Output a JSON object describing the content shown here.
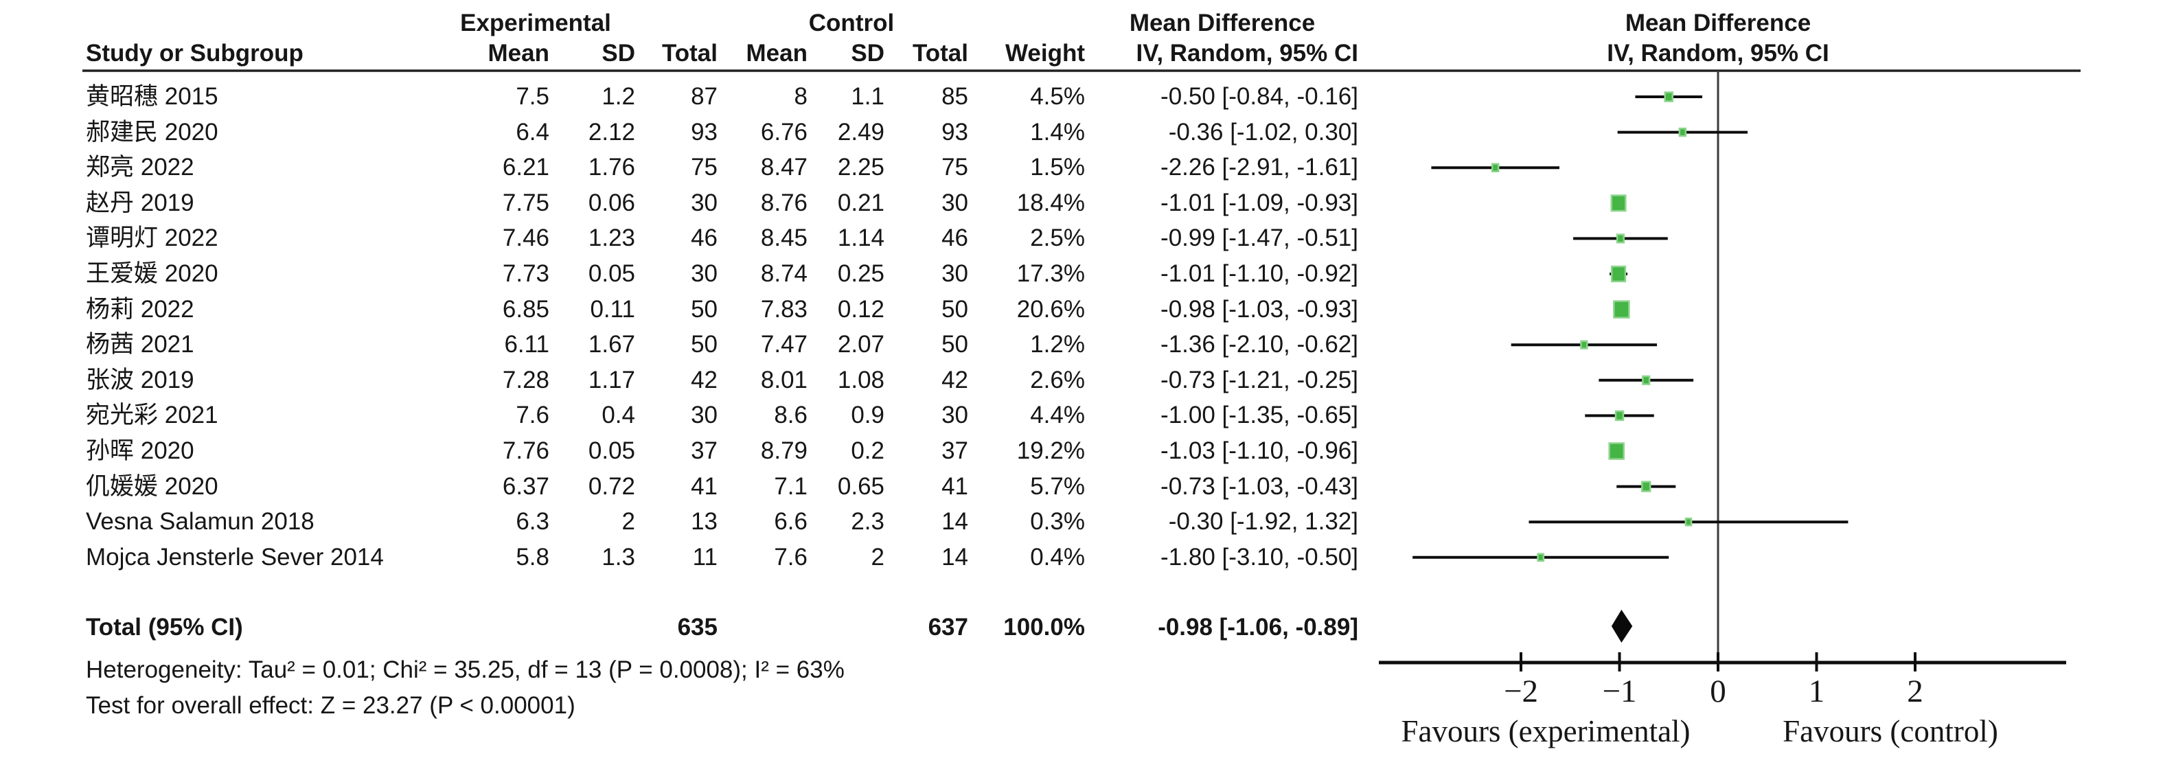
{
  "headers": {
    "group_experimental": "Experimental",
    "group_control": "Control",
    "md_text": "Mean Difference",
    "md_plot": "Mean Difference",
    "study": "Study or Subgroup",
    "mean": "Mean",
    "sd": "SD",
    "total": "Total",
    "weight": "Weight",
    "iv_text": "IV, Random, 95% CI",
    "iv_plot": "IV, Random, 95% CI"
  },
  "footnotes": {
    "heterogeneity": "Heterogeneity: Tau² = 0.01; Chi² = 35.25, df = 13 (P = 0.0008); I² = 63%",
    "overall_effect": "Test for overall effect: Z = 23.27 (P < 0.00001)"
  },
  "axis": {
    "tick_values": [
      -2,
      -1,
      0,
      1,
      2
    ],
    "tick_labels": [
      "−2",
      "−1",
      "0",
      "1",
      "2"
    ],
    "xmin": -3.45,
    "xmax": 3.55,
    "favours_left": "Favours (experimental)",
    "favours_right": "Favours (control)"
  },
  "colors": {
    "marker_green": "#45B545",
    "marker_green_light": "#8FD48F",
    "line_black": "#0d0d0d",
    "zero_line": "#3c3c3c"
  },
  "chart_data": {
    "type": "forest",
    "effect_measure": "Mean Difference",
    "model": "IV, Random, 95% CI",
    "studies": [
      {
        "name": "黄昭穗 2015",
        "exp_mean": 7.5,
        "exp_sd": 1.2,
        "exp_total": 87,
        "ctrl_mean": 8,
        "ctrl_sd": 1.1,
        "ctrl_total": 85,
        "weight": "4.5%",
        "weight_value": 4.5,
        "md": -0.5,
        "ci_low": -0.84,
        "ci_high": -0.16,
        "md_label": "-0.50 [-0.84, -0.16]"
      },
      {
        "name": "郝建民 2020",
        "exp_mean": 6.4,
        "exp_sd": 2.12,
        "exp_total": 93,
        "ctrl_mean": 6.76,
        "ctrl_sd": 2.49,
        "ctrl_total": 93,
        "weight": "1.4%",
        "weight_value": 1.4,
        "md": -0.36,
        "ci_low": -1.02,
        "ci_high": 0.3,
        "md_label": "-0.36 [-1.02, 0.30]"
      },
      {
        "name": "郑亮 2022",
        "exp_mean": 6.21,
        "exp_sd": 1.76,
        "exp_total": 75,
        "ctrl_mean": 8.47,
        "ctrl_sd": 2.25,
        "ctrl_total": 75,
        "weight": "1.5%",
        "weight_value": 1.5,
        "md": -2.26,
        "ci_low": -2.91,
        "ci_high": -1.61,
        "md_label": "-2.26 [-2.91, -1.61]"
      },
      {
        "name": "赵丹 2019",
        "exp_mean": 7.75,
        "exp_sd": 0.06,
        "exp_total": 30,
        "ctrl_mean": 8.76,
        "ctrl_sd": 0.21,
        "ctrl_total": 30,
        "weight": "18.4%",
        "weight_value": 18.4,
        "md": -1.01,
        "ci_low": -1.09,
        "ci_high": -0.93,
        "md_label": "-1.01 [-1.09, -0.93]"
      },
      {
        "name": "谭明灯 2022",
        "exp_mean": 7.46,
        "exp_sd": 1.23,
        "exp_total": 46,
        "ctrl_mean": 8.45,
        "ctrl_sd": 1.14,
        "ctrl_total": 46,
        "weight": "2.5%",
        "weight_value": 2.5,
        "md": -0.99,
        "ci_low": -1.47,
        "ci_high": -0.51,
        "md_label": "-0.99 [-1.47, -0.51]"
      },
      {
        "name": "王爱媛 2020",
        "exp_mean": 7.73,
        "exp_sd": 0.05,
        "exp_total": 30,
        "ctrl_mean": 8.74,
        "ctrl_sd": 0.25,
        "ctrl_total": 30,
        "weight": "17.3%",
        "weight_value": 17.3,
        "md": -1.01,
        "ci_low": -1.1,
        "ci_high": -0.92,
        "md_label": "-1.01 [-1.10, -0.92]"
      },
      {
        "name": "杨莉 2022",
        "exp_mean": 6.85,
        "exp_sd": 0.11,
        "exp_total": 50,
        "ctrl_mean": 7.83,
        "ctrl_sd": 0.12,
        "ctrl_total": 50,
        "weight": "20.6%",
        "weight_value": 20.6,
        "md": -0.98,
        "ci_low": -1.03,
        "ci_high": -0.93,
        "md_label": "-0.98 [-1.03, -0.93]"
      },
      {
        "name": "杨茜 2021",
        "exp_mean": 6.11,
        "exp_sd": 1.67,
        "exp_total": 50,
        "ctrl_mean": 7.47,
        "ctrl_sd": 2.07,
        "ctrl_total": 50,
        "weight": "1.2%",
        "weight_value": 1.2,
        "md": -1.36,
        "ci_low": -2.1,
        "ci_high": -0.62,
        "md_label": "-1.36 [-2.10, -0.62]"
      },
      {
        "name": "张波 2019",
        "exp_mean": 7.28,
        "exp_sd": 1.17,
        "exp_total": 42,
        "ctrl_mean": 8.01,
        "ctrl_sd": 1.08,
        "ctrl_total": 42,
        "weight": "2.6%",
        "weight_value": 2.6,
        "md": -0.73,
        "ci_low": -1.21,
        "ci_high": -0.25,
        "md_label": "-0.73 [-1.21, -0.25]"
      },
      {
        "name": "宛光彩 2021",
        "exp_mean": 7.6,
        "exp_sd": 0.4,
        "exp_total": 30,
        "ctrl_mean": 8.6,
        "ctrl_sd": 0.9,
        "ctrl_total": 30,
        "weight": "4.4%",
        "weight_value": 4.4,
        "md": -1.0,
        "ci_low": -1.35,
        "ci_high": -0.65,
        "md_label": "-1.00 [-1.35, -0.65]"
      },
      {
        "name": "孙晖 2020",
        "exp_mean": 7.76,
        "exp_sd": 0.05,
        "exp_total": 37,
        "ctrl_mean": 8.79,
        "ctrl_sd": 0.2,
        "ctrl_total": 37,
        "weight": "19.2%",
        "weight_value": 19.2,
        "md": -1.03,
        "ci_low": -1.1,
        "ci_high": -0.96,
        "md_label": "-1.03 [-1.10, -0.96]"
      },
      {
        "name": "仉媛媛 2020",
        "exp_mean": 6.37,
        "exp_sd": 0.72,
        "exp_total": 41,
        "ctrl_mean": 7.1,
        "ctrl_sd": 0.65,
        "ctrl_total": 41,
        "weight": "5.7%",
        "weight_value": 5.7,
        "md": -0.73,
        "ci_low": -1.03,
        "ci_high": -0.43,
        "md_label": "-0.73 [-1.03, -0.43]"
      },
      {
        "name": "Vesna Salamun 2018",
        "exp_mean": 6.3,
        "exp_sd": 2,
        "exp_total": 13,
        "ctrl_mean": 6.6,
        "ctrl_sd": 2.3,
        "ctrl_total": 14,
        "weight": "0.3%",
        "weight_value": 0.3,
        "md": -0.3,
        "ci_low": -1.92,
        "ci_high": 1.32,
        "md_label": "-0.30 [-1.92, 1.32]"
      },
      {
        "name": "Mojca Jensterle Sever 2014",
        "exp_mean": 5.8,
        "exp_sd": 1.3,
        "exp_total": 11,
        "ctrl_mean": 7.6,
        "ctrl_sd": 2,
        "ctrl_total": 14,
        "weight": "0.4%",
        "weight_value": 0.4,
        "md": -1.8,
        "ci_low": -3.1,
        "ci_high": -0.5,
        "md_label": "-1.80 [-3.10, -0.50]"
      }
    ],
    "total": {
      "label": "Total (95% CI)",
      "exp_total": 635,
      "ctrl_total": 637,
      "weight": "100.0%",
      "md": -0.98,
      "ci_low": -1.06,
      "ci_high": -0.89,
      "md_label": "-0.98 [-1.06, -0.89]"
    },
    "heterogeneity": {
      "tau2": 0.01,
      "chi2": 35.25,
      "df": 13,
      "p": 0.0008,
      "i2": "63%"
    },
    "overall_effect": {
      "z": 23.27,
      "p": "< 0.00001"
    }
  }
}
